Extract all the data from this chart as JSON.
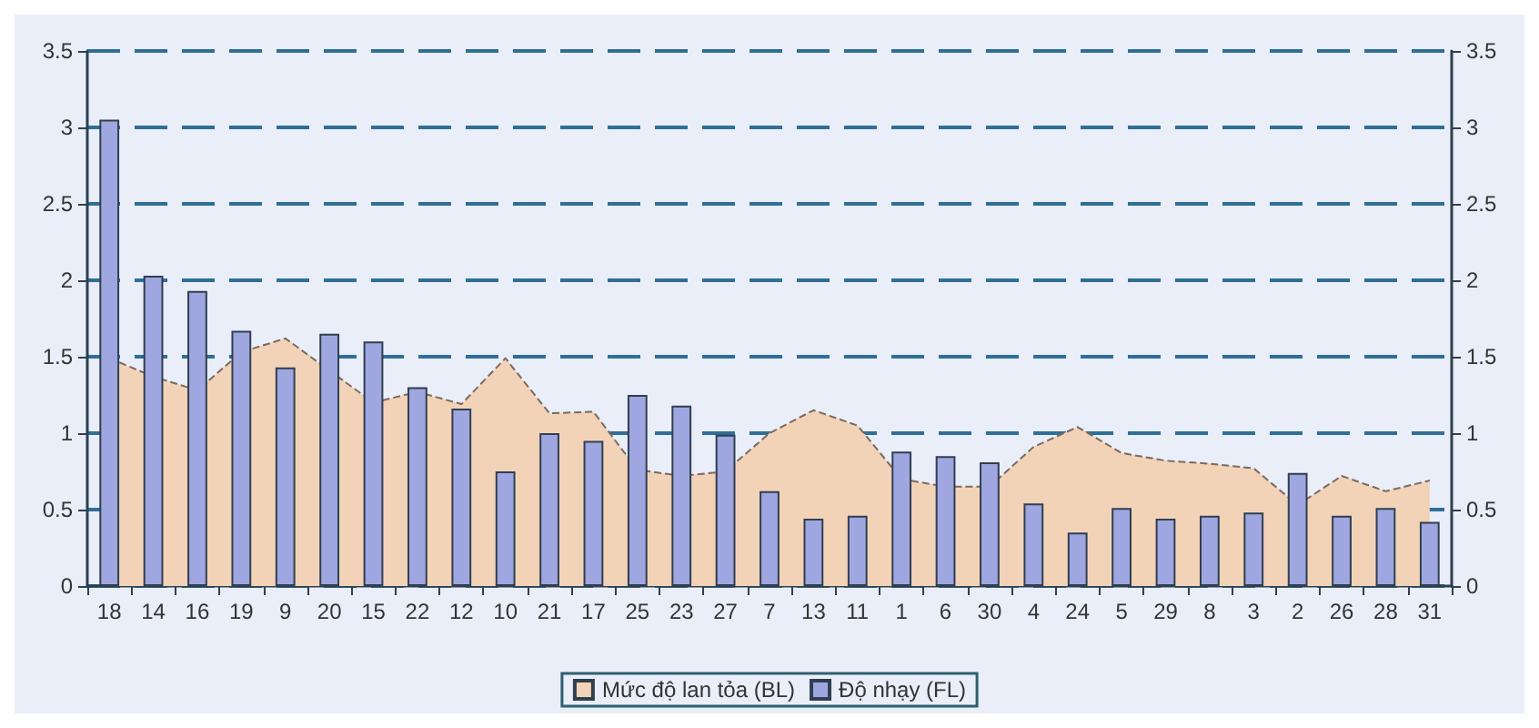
{
  "chart_data": {
    "type": "bar",
    "categories": [
      "18",
      "14",
      "16",
      "19",
      "9",
      "20",
      "15",
      "22",
      "12",
      "10",
      "21",
      "17",
      "25",
      "23",
      "27",
      "7",
      "13",
      "11",
      "1",
      "6",
      "30",
      "4",
      "24",
      "5",
      "29",
      "8",
      "3",
      "2",
      "26",
      "28",
      "31"
    ],
    "series": [
      {
        "name": "Mức độ lan tỏa (BL)",
        "type": "area",
        "color": "#f2d3b8",
        "values": [
          1.49,
          1.37,
          1.28,
          1.53,
          1.62,
          1.41,
          1.2,
          1.27,
          1.19,
          1.49,
          1.13,
          1.14,
          0.76,
          0.72,
          0.75,
          1.0,
          1.15,
          1.05,
          0.7,
          0.65,
          0.65,
          0.91,
          1.04,
          0.87,
          0.82,
          0.8,
          0.77,
          0.53,
          0.72,
          0.62,
          0.69
        ]
      },
      {
        "name": "Độ nhạy (FL)",
        "color": "#9fa6e0",
        "values": [
          3.05,
          2.03,
          1.93,
          1.67,
          1.43,
          1.65,
          1.6,
          1.3,
          1.16,
          0.75,
          1.0,
          0.95,
          1.25,
          1.18,
          0.99,
          0.62,
          0.44,
          0.46,
          0.88,
          0.85,
          0.81,
          0.54,
          0.35,
          0.51,
          0.44,
          0.46,
          0.48,
          0.74,
          0.46,
          0.51,
          0.42
        ]
      }
    ],
    "ylim": [
      0,
      3.5
    ],
    "yticks": [
      0,
      0.5,
      1,
      1.5,
      2,
      2.5,
      3,
      3.5
    ],
    "y2lim": [
      0,
      3.5
    ],
    "y2ticks": [
      0,
      0.5,
      1,
      1.5,
      2,
      2.5,
      3,
      3.5
    ],
    "grid": "y",
    "legend": "bottom"
  }
}
